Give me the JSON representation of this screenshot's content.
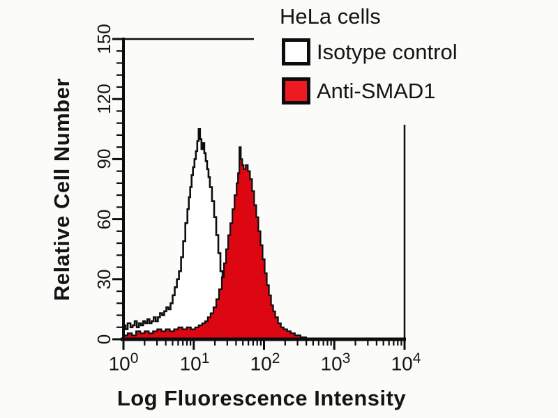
{
  "title": "HeLa cells",
  "legend": {
    "position": "top-right",
    "items": [
      {
        "label": "Isotype control",
        "swatch": "#ffffff"
      },
      {
        "label": "Anti-SMAD1",
        "swatch": "#ee1a22"
      }
    ]
  },
  "axes": {
    "y": {
      "label": "Relative Cell Number",
      "ticks": [
        "0",
        "30",
        "60",
        "90",
        "120",
        "150"
      ],
      "range": [
        0,
        150
      ],
      "major_step": 30,
      "minor_step": 6
    },
    "x": {
      "label": "Log Fluorescence Intensity",
      "scale": "log10",
      "tick_base": "10",
      "tick_exponents": [
        "0",
        "1",
        "2",
        "3",
        "4"
      ],
      "range_log10": [
        0,
        4
      ]
    }
  },
  "colors": {
    "background": "#fbfbf9",
    "axis": "#0d0d0d",
    "text": "#141414",
    "anti_smad1_fill": "#dc0712",
    "isotype_fill": "#ffffff",
    "outline": "#0d0d0d"
  },
  "chart_data": {
    "type": "area",
    "subtype": "flow-cytometry-histogram-overlay",
    "title": "HeLa cells",
    "xlabel": "Log Fluorescence Intensity",
    "ylabel": "Relative Cell Number",
    "x_scale": "log10",
    "xlim_log10": [
      0,
      4
    ],
    "ylim": [
      0,
      150
    ],
    "grid": false,
    "legend_position": "top-right",
    "series": [
      {
        "name": "Isotype control",
        "style": "open",
        "fill": "#ffffff",
        "outline": "#0d0d0d",
        "peak_x": 12,
        "peak_y": 105,
        "points_log10x_y": [
          [
            0.0,
            7
          ],
          [
            0.03,
            5
          ],
          [
            0.06,
            8
          ],
          [
            0.1,
            6
          ],
          [
            0.13,
            7
          ],
          [
            0.16,
            9
          ],
          [
            0.19,
            6
          ],
          [
            0.22,
            8
          ],
          [
            0.25,
            7
          ],
          [
            0.28,
            9
          ],
          [
            0.31,
            8
          ],
          [
            0.34,
            10
          ],
          [
            0.37,
            8
          ],
          [
            0.4,
            9
          ],
          [
            0.43,
            11
          ],
          [
            0.46,
            9
          ],
          [
            0.49,
            11
          ],
          [
            0.52,
            13
          ],
          [
            0.55,
            12
          ],
          [
            0.58,
            14
          ],
          [
            0.61,
            16
          ],
          [
            0.64,
            15
          ],
          [
            0.67,
            18
          ],
          [
            0.7,
            22
          ],
          [
            0.73,
            26
          ],
          [
            0.76,
            30
          ],
          [
            0.79,
            34
          ],
          [
            0.82,
            41
          ],
          [
            0.85,
            49
          ],
          [
            0.88,
            58
          ],
          [
            0.91,
            65
          ],
          [
            0.93,
            71
          ],
          [
            0.95,
            76
          ],
          [
            0.97,
            82
          ],
          [
            0.99,
            86
          ],
          [
            1.01,
            90
          ],
          [
            1.03,
            94
          ],
          [
            1.05,
            99
          ],
          [
            1.07,
            105
          ],
          [
            1.09,
            100
          ],
          [
            1.11,
            95
          ],
          [
            1.13,
            98
          ],
          [
            1.15,
            93
          ],
          [
            1.17,
            89
          ],
          [
            1.19,
            85
          ],
          [
            1.21,
            81
          ],
          [
            1.23,
            76
          ],
          [
            1.26,
            69
          ],
          [
            1.29,
            61
          ],
          [
            1.32,
            52
          ],
          [
            1.35,
            43
          ],
          [
            1.38,
            34
          ],
          [
            1.41,
            27
          ],
          [
            1.44,
            21
          ],
          [
            1.47,
            16
          ],
          [
            1.5,
            12
          ],
          [
            1.54,
            9
          ],
          [
            1.58,
            6
          ],
          [
            1.63,
            4
          ],
          [
            1.7,
            3
          ],
          [
            1.8,
            2
          ],
          [
            1.92,
            1
          ],
          [
            2.02,
            0
          ]
        ]
      },
      {
        "name": "Anti-SMAD1",
        "style": "filled",
        "fill": "#dc0712",
        "outline": "#0d0d0d",
        "peak_x": 45,
        "peak_y": 96,
        "points_log10x_y": [
          [
            0.0,
            2
          ],
          [
            0.06,
            3
          ],
          [
            0.12,
            2
          ],
          [
            0.18,
            4
          ],
          [
            0.24,
            3
          ],
          [
            0.3,
            4
          ],
          [
            0.36,
            3
          ],
          [
            0.42,
            4
          ],
          [
            0.48,
            5
          ],
          [
            0.54,
            4
          ],
          [
            0.6,
            5
          ],
          [
            0.66,
            4
          ],
          [
            0.72,
            5
          ],
          [
            0.78,
            6
          ],
          [
            0.84,
            5
          ],
          [
            0.9,
            6
          ],
          [
            0.96,
            5
          ],
          [
            1.02,
            6
          ],
          [
            1.07,
            7
          ],
          [
            1.12,
            8
          ],
          [
            1.16,
            9
          ],
          [
            1.2,
            11
          ],
          [
            1.24,
            13
          ],
          [
            1.28,
            16
          ],
          [
            1.32,
            20
          ],
          [
            1.36,
            25
          ],
          [
            1.4,
            31
          ],
          [
            1.43,
            38
          ],
          [
            1.46,
            45
          ],
          [
            1.49,
            52
          ],
          [
            1.52,
            58
          ],
          [
            1.55,
            65
          ],
          [
            1.58,
            72
          ],
          [
            1.61,
            78
          ],
          [
            1.63,
            83
          ],
          [
            1.65,
            96
          ],
          [
            1.67,
            90
          ],
          [
            1.69,
            87
          ],
          [
            1.71,
            85
          ],
          [
            1.74,
            87
          ],
          [
            1.77,
            84
          ],
          [
            1.8,
            80
          ],
          [
            1.83,
            74
          ],
          [
            1.86,
            67
          ],
          [
            1.89,
            61
          ],
          [
            1.92,
            54
          ],
          [
            1.95,
            47
          ],
          [
            1.98,
            40
          ],
          [
            2.01,
            33
          ],
          [
            2.04,
            27
          ],
          [
            2.07,
            22
          ],
          [
            2.1,
            17
          ],
          [
            2.13,
            14
          ],
          [
            2.16,
            11
          ],
          [
            2.2,
            8
          ],
          [
            2.24,
            6
          ],
          [
            2.28,
            5
          ],
          [
            2.33,
            4
          ],
          [
            2.38,
            3
          ],
          [
            2.44,
            2
          ],
          [
            2.52,
            1
          ],
          [
            2.6,
            0
          ]
        ]
      }
    ]
  }
}
